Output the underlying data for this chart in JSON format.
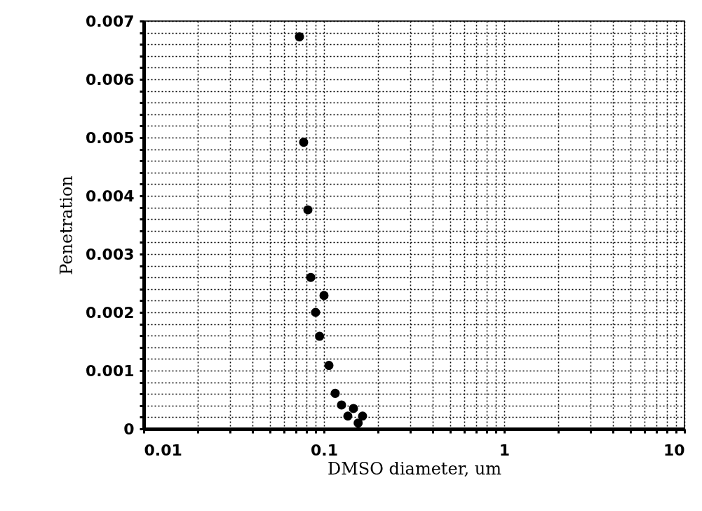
{
  "chart_data": {
    "type": "scatter",
    "xlabel": "DMSO diameter, um",
    "ylabel": "Penetration",
    "x": [
      0.0731,
      0.0771,
      0.0814,
      0.0844,
      0.1,
      0.0898,
      0.0945,
      0.1065,
      0.1154,
      0.1251,
      0.1457,
      0.1356,
      0.1637,
      0.1547
    ],
    "series": [
      {
        "color": "#000000",
        "values": [
          0.00673,
          0.00492,
          0.00376,
          0.0026,
          0.00229,
          0.002,
          0.00159,
          0.00109,
          0.00061,
          0.00041,
          0.00035,
          0.00022,
          0.00022,
          0.0001
        ]
      }
    ],
    "log": "x",
    "xlim": [
      0.01,
      10
    ],
    "ylim": [
      0,
      0.007
    ],
    "xticks": [
      0.01,
      {
        "value": 0.02,
        "label": null
      },
      {
        "value": 0.03,
        "label": null
      },
      {
        "value": 0.04,
        "label": null
      },
      {
        "value": 0.05,
        "label": null
      },
      {
        "value": 0.06,
        "label": null
      },
      {
        "value": 0.07,
        "label": null
      },
      {
        "value": 0.08,
        "label": null
      },
      {
        "value": 0.09,
        "label": null
      },
      0.1,
      {
        "value": 0.2,
        "label": null
      },
      {
        "value": 0.3,
        "label": null
      },
      {
        "value": 0.4,
        "label": null
      },
      {
        "value": 0.5,
        "label": null
      },
      {
        "value": 0.6,
        "label": null
      },
      {
        "value": 0.7,
        "label": null
      },
      {
        "value": 0.8,
        "label": null
      },
      {
        "value": 0.9,
        "label": null
      },
      1,
      {
        "value": 2,
        "label": null
      },
      {
        "value": 3,
        "label": null
      },
      {
        "value": 4,
        "label": null
      },
      {
        "value": 5,
        "label": null
      },
      {
        "value": 6,
        "label": null
      },
      {
        "value": 7,
        "label": null
      },
      {
        "value": 8,
        "label": null
      },
      {
        "value": 9,
        "label": null
      },
      10
    ],
    "yticks": [
      0,
      {
        "value": 0.0002,
        "label": null
      },
      {
        "value": 0.0004,
        "label": null
      },
      {
        "value": 0.0006,
        "label": null
      },
      {
        "value": 0.0008,
        "label": null
      },
      0.001,
      {
        "value": 0.0012,
        "label": null
      },
      {
        "value": 0.0014,
        "label": null
      },
      {
        "value": 0.0016,
        "label": null
      },
      {
        "value": 0.0018,
        "label": null
      },
      0.002,
      {
        "value": 0.0022,
        "label": null
      },
      {
        "value": 0.0024,
        "label": null
      },
      {
        "value": 0.0026,
        "label": null
      },
      {
        "value": 0.0028,
        "label": null
      },
      0.003,
      {
        "value": 0.0032,
        "label": null
      },
      {
        "value": 0.0034,
        "label": null
      },
      {
        "value": 0.0036,
        "label": null
      },
      {
        "value": 0.0038,
        "label": null
      },
      0.004,
      {
        "value": 0.0042,
        "label": null
      },
      {
        "value": 0.0044,
        "label": null
      },
      {
        "value": 0.0046,
        "label": null
      },
      {
        "value": 0.0048,
        "label": null
      },
      0.005,
      {
        "value": 0.0052,
        "label": null
      },
      {
        "value": 0.0054,
        "label": null
      },
      {
        "value": 0.0056,
        "label": null
      },
      {
        "value": 0.0058,
        "label": null
      },
      0.006,
      {
        "value": 0.0062,
        "label": null
      },
      {
        "value": 0.0064,
        "label": null
      },
      {
        "value": 0.0066,
        "label": null
      },
      {
        "value": 0.0068,
        "label": null
      },
      0.007
    ],
    "grid": true,
    "marker": "circle"
  }
}
